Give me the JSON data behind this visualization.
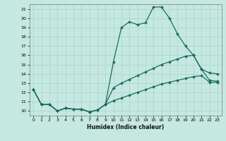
{
  "title": "",
  "xlabel": "Humidex (Indice chaleur)",
  "ylabel": "",
  "background_color": "#c5e8e0",
  "grid_color": "#aed8cf",
  "line_color": "#1a6b60",
  "xlim": [
    -0.5,
    23.5
  ],
  "ylim": [
    9.5,
    21.5
  ],
  "xticks": [
    0,
    1,
    2,
    3,
    4,
    5,
    6,
    7,
    8,
    9,
    10,
    11,
    12,
    13,
    14,
    15,
    16,
    17,
    18,
    19,
    20,
    21,
    22,
    23
  ],
  "yticks": [
    10,
    11,
    12,
    13,
    14,
    15,
    16,
    17,
    18,
    19,
    20,
    21
  ],
  "line1_x": [
    0,
    1,
    2,
    3,
    4,
    5,
    6,
    7,
    8,
    9,
    10,
    11,
    12,
    13,
    14,
    15,
    16,
    17,
    18,
    19,
    20,
    21,
    22,
    23
  ],
  "line1_y": [
    12.3,
    10.7,
    10.7,
    10.0,
    10.3,
    10.2,
    10.2,
    9.9,
    10.1,
    10.7,
    15.3,
    19.0,
    19.6,
    19.3,
    19.5,
    21.2,
    21.2,
    20.0,
    18.3,
    17.0,
    16.0,
    14.5,
    14.1,
    14.0
  ],
  "line2_x": [
    0,
    1,
    2,
    3,
    4,
    5,
    6,
    7,
    8,
    9,
    10,
    11,
    12,
    13,
    14,
    15,
    16,
    17,
    18,
    19,
    20,
    21,
    22,
    23
  ],
  "line2_y": [
    12.3,
    10.7,
    10.7,
    10.0,
    10.3,
    10.2,
    10.2,
    9.9,
    10.1,
    10.7,
    12.5,
    13.0,
    13.4,
    13.8,
    14.2,
    14.6,
    15.0,
    15.3,
    15.6,
    15.9,
    16.0,
    14.5,
    13.3,
    13.2
  ],
  "line3_x": [
    0,
    1,
    2,
    3,
    4,
    5,
    6,
    7,
    8,
    9,
    10,
    11,
    12,
    13,
    14,
    15,
    16,
    17,
    18,
    19,
    20,
    21,
    22,
    23
  ],
  "line3_y": [
    12.3,
    10.7,
    10.7,
    10.0,
    10.3,
    10.2,
    10.2,
    9.9,
    10.1,
    10.7,
    11.1,
    11.4,
    11.7,
    12.0,
    12.3,
    12.6,
    12.9,
    13.1,
    13.3,
    13.5,
    13.7,
    13.8,
    13.1,
    13.1
  ]
}
